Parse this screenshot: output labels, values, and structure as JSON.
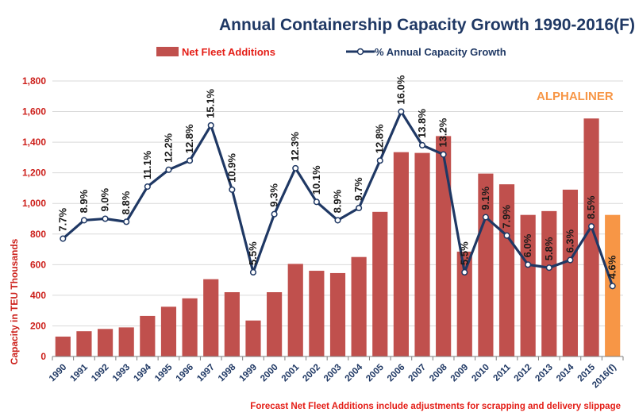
{
  "chart_data": {
    "type": "bar+line",
    "title": "Annual Containership Capacity Growth 1990-2016(F)",
    "ylabel": "Capacity in TEU Thousands",
    "ylim": [
      0,
      1800
    ],
    "yticks": [
      "0",
      "200",
      "400",
      "600",
      "800",
      "1,000",
      "1,200",
      "1,400",
      "1,600",
      "1,800"
    ],
    "ytick_values": [
      0,
      200,
      400,
      600,
      800,
      1000,
      1200,
      1400,
      1600,
      1800
    ],
    "categories": [
      "1990",
      "1991",
      "1992",
      "1993",
      "1994",
      "1995",
      "1996",
      "1997",
      "1998",
      "1999",
      "2000",
      "2001",
      "2002",
      "2003",
      "2004",
      "2005",
      "2006",
      "2007",
      "2008",
      "2009",
      "2010",
      "2011",
      "2012",
      "2013",
      "2014",
      "2015",
      "2016(f)"
    ],
    "series": [
      {
        "name": "Net Fleet Additions",
        "kind": "bar",
        "color": "#c0504d",
        "forecast_color": "#f79646",
        "values": [
          130,
          165,
          180,
          190,
          265,
          325,
          380,
          505,
          420,
          235,
          420,
          605,
          560,
          545,
          650,
          945,
          1335,
          1330,
          1440,
          685,
          1195,
          1125,
          925,
          950,
          1090,
          1555,
          925
        ]
      },
      {
        "name": "% Annual Capacity Growth",
        "kind": "line",
        "color": "#1f3864",
        "values": [
          7.7,
          8.9,
          9.0,
          8.8,
          11.1,
          12.2,
          12.8,
          15.1,
          10.9,
          5.5,
          9.3,
          12.3,
          10.1,
          8.9,
          9.7,
          12.8,
          16.0,
          13.8,
          13.2,
          5.5,
          9.1,
          7.9,
          6.0,
          5.8,
          6.3,
          8.5,
          4.6
        ],
        "labels": [
          "7.7%",
          "8.9%",
          "9.0%",
          "8.8%",
          "11.1%",
          "12.2%",
          "12.8%",
          "15.1%",
          "10.9%",
          "5.5%",
          "9.3%",
          "12.3%",
          "10.1%",
          "8.9%",
          "9.7%",
          "12.8%",
          "16.0%",
          "13.8%",
          "13.2%",
          "5.5%",
          "9.1%",
          "7.9%",
          "6.0%",
          "5.8%",
          "6.3%",
          "8.5%",
          "4.6%"
        ],
        "scale_note": "plotted on primary axis at value x 100"
      }
    ],
    "legend": [
      "Net Fleet Additions",
      "% Annual Capacity Growth"
    ],
    "legend_position": "top",
    "grid": true,
    "annotation": "ALPHALINER",
    "footnote": "Forecast Net Fleet Additions include adjustments for scrapping and delivery slippage"
  }
}
